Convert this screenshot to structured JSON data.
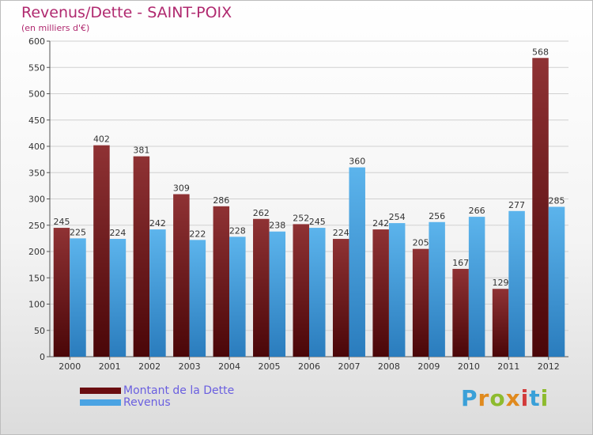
{
  "title": "Revenus/Dette - SAINT-POIX",
  "subtitle": "(en milliers d'€)",
  "logo_text": "Proxiti",
  "colors": {
    "debt_dark": "#4a0608",
    "debt_light": "#8f3234",
    "revenue_dark": "#2a7cbd",
    "revenue_light": "#5cb4ec",
    "title": "#b0296f",
    "legend_text": "#6a5fe0"
  },
  "legend": [
    {
      "label": "Montant de la Dette",
      "color": "#6a0d10"
    },
    {
      "label": "Revenus",
      "color": "#4aa3e3"
    }
  ],
  "chart_data": {
    "type": "bar",
    "categories": [
      "2000",
      "2001",
      "2002",
      "2003",
      "2004",
      "2005",
      "2006",
      "2007",
      "2008",
      "2009",
      "2010",
      "2011",
      "2012"
    ],
    "series": [
      {
        "name": "Montant de la Dette",
        "values": [
          245,
          402,
          381,
          309,
          286,
          262,
          252,
          224,
          242,
          205,
          167,
          129,
          568
        ]
      },
      {
        "name": "Revenus",
        "values": [
          225,
          224,
          242,
          222,
          228,
          238,
          245,
          360,
          254,
          256,
          266,
          277,
          285
        ]
      }
    ],
    "ylim": [
      0,
      600
    ],
    "yticks": [
      0,
      50,
      100,
      150,
      200,
      250,
      300,
      350,
      400,
      450,
      500,
      550,
      600
    ],
    "grid": true,
    "legend_position": "bottom-left",
    "xlabel": "",
    "ylabel": ""
  }
}
